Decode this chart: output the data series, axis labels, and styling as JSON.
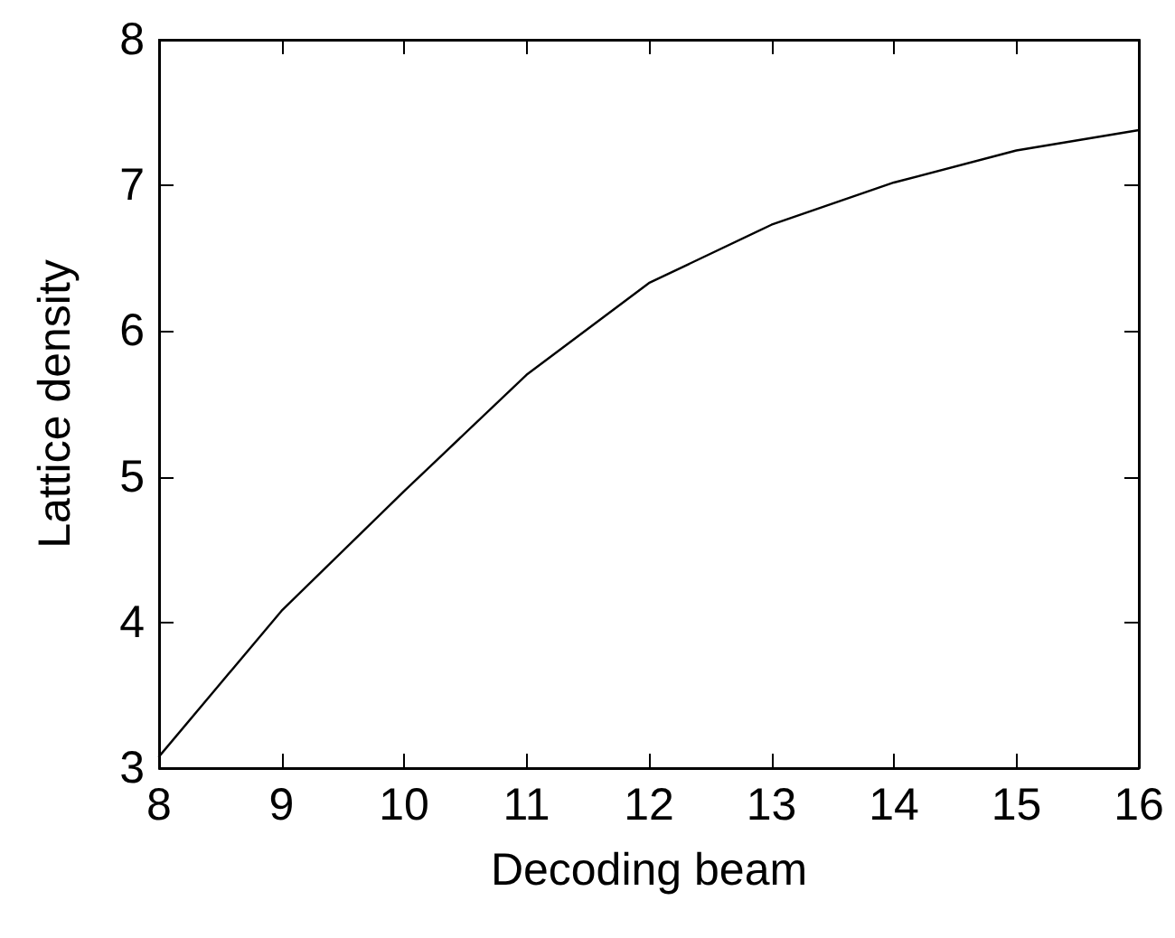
{
  "chart_data": {
    "type": "line",
    "xlabel": "Decoding beam",
    "ylabel": "Lattice density",
    "x": [
      8,
      9,
      10,
      11,
      12,
      13,
      14,
      15,
      16
    ],
    "series": [
      {
        "color": "#000000",
        "values": [
          3.08,
          4.08,
          4.9,
          5.7,
          6.33,
          6.73,
          7.02,
          7.24,
          7.38
        ]
      }
    ],
    "xlim": [
      8,
      16
    ],
    "xticks": [
      8,
      9,
      10,
      11,
      12,
      13,
      14,
      15,
      16
    ],
    "ylim": [
      3,
      8
    ],
    "yticks": [
      3,
      4,
      5,
      6,
      7,
      8
    ],
    "grid": false,
    "marker": "none",
    "line_style": "solid"
  }
}
